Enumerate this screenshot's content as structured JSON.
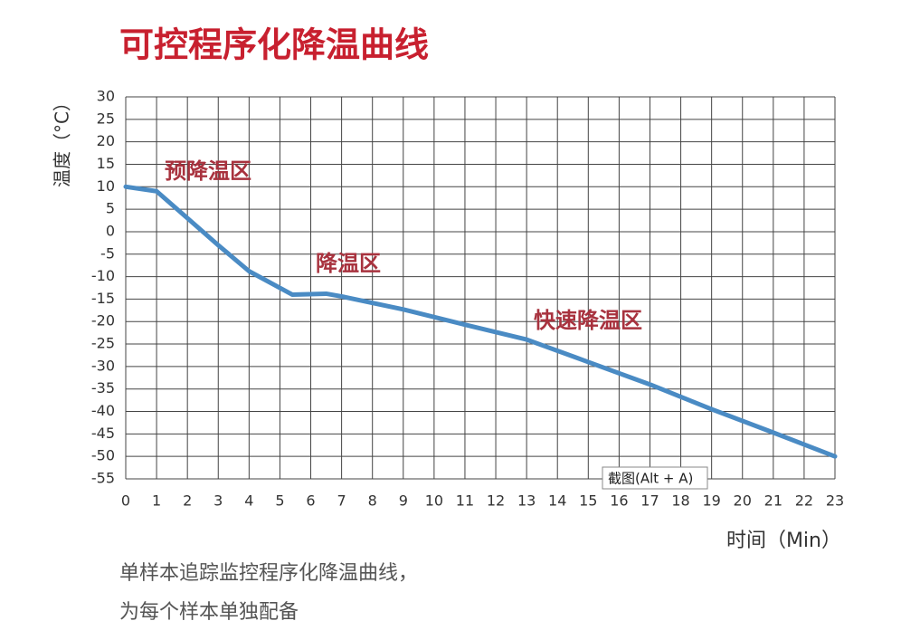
{
  "chart_data": {
    "type": "line",
    "title": "可控程序化降温曲线",
    "y_label": "温度（°C）",
    "x_label": "时间（Min）",
    "x": [
      0,
      1,
      2,
      3,
      4,
      5.4,
      6.5,
      7,
      9,
      11,
      13,
      13.6,
      15,
      17,
      19,
      21,
      23
    ],
    "series": [
      {
        "color": "#4a8bc4",
        "values": [
          10,
          9,
          3,
          -3,
          -8.8,
          -14,
          -13.8,
          -14.4,
          -17.3,
          -20.7,
          -24,
          -25.5,
          -29,
          -34,
          -39.5,
          -44.7,
          -50
        ]
      }
    ],
    "xlim": [
      0,
      23
    ],
    "xticks": [
      0,
      1,
      2,
      3,
      4,
      5,
      6,
      7,
      8,
      9,
      10,
      11,
      12,
      13,
      14,
      15,
      16,
      17,
      18,
      19,
      20,
      21,
      22,
      23
    ],
    "ylim": [
      -55,
      30
    ],
    "yticks": [
      30,
      25,
      20,
      15,
      10,
      5,
      0,
      -5,
      -10,
      -15,
      -20,
      -25,
      -30,
      -35,
      -40,
      -45,
      -50,
      -55
    ],
    "grid": true,
    "annotations": [
      "预降温区",
      "降温区",
      "快速降温区"
    ]
  },
  "description": [
    "单样本追踪监控程序化降温曲线，",
    "为每个样本单独配备"
  ],
  "tooltip": "截图(Alt + A)"
}
